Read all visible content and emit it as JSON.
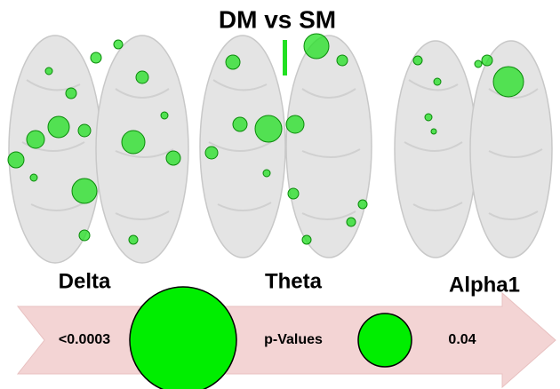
{
  "title": "DM vs SM",
  "panels": [
    {
      "label": "Delta"
    },
    {
      "label": "Theta"
    },
    {
      "label": "Alpha1"
    }
  ],
  "legend": {
    "min_label": "<0.0003",
    "title": "p-Values",
    "max_label": "0.04"
  }
}
